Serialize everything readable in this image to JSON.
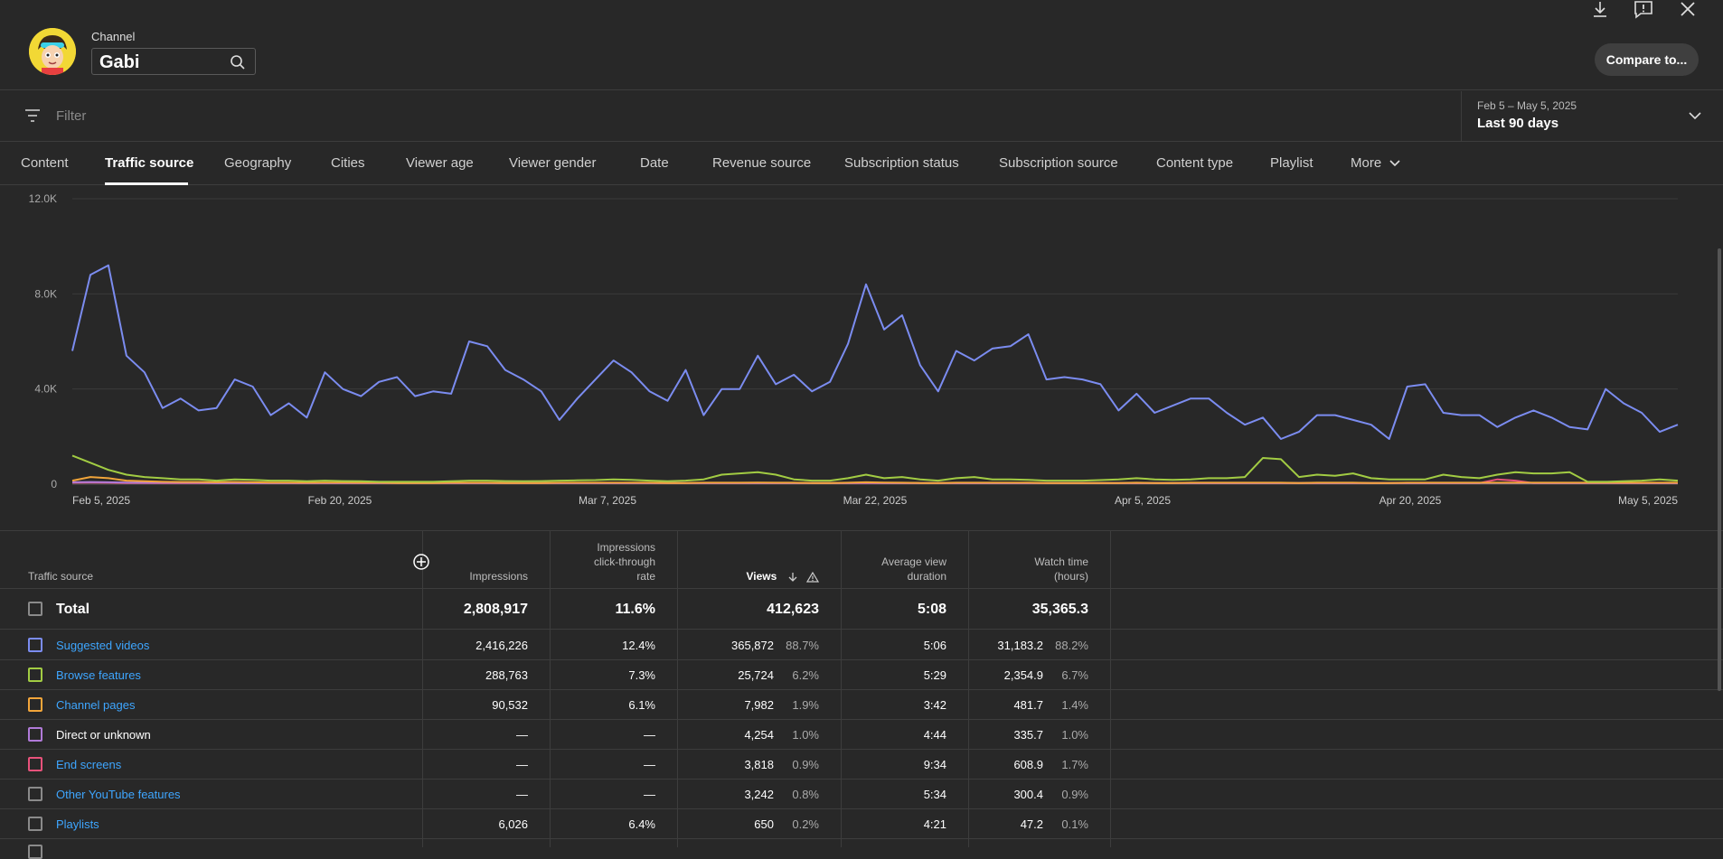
{
  "header": {
    "channel_label": "Channel",
    "channel_name": "Gabi",
    "compare_label": "Compare to..."
  },
  "filter": {
    "placeholder": "Filter",
    "date_range": "Feb 5 – May 5, 2025",
    "date_label": "Last 90 days"
  },
  "tabs": [
    {
      "label": "Content"
    },
    {
      "label": "Traffic source"
    },
    {
      "label": "Geography"
    },
    {
      "label": "Cities"
    },
    {
      "label": "Viewer age"
    },
    {
      "label": "Viewer gender"
    },
    {
      "label": "Date"
    },
    {
      "label": "Revenue source"
    },
    {
      "label": "Subscription status"
    },
    {
      "label": "Subscription source"
    },
    {
      "label": "Content type"
    },
    {
      "label": "Playlist"
    },
    {
      "label": "More"
    }
  ],
  "chart_data": {
    "type": "line",
    "y_ticks": [
      "12.0K",
      "8.0K",
      "4.0K",
      "0"
    ],
    "x_ticks": [
      "Feb 5, 2025",
      "Feb 20, 2025",
      "Mar 7, 2025",
      "Mar 22, 2025",
      "Apr 5, 2025",
      "Apr 20, 2025",
      "May 5, 2025"
    ],
    "ylim": [
      0,
      12000
    ],
    "grid": true,
    "series": [
      {
        "color": "#7b8cf0",
        "values": [
          5600,
          8800,
          9200,
          5400,
          4700,
          3200,
          3600,
          3100,
          3200,
          4400,
          4100,
          2900,
          3400,
          2800,
          4700,
          4000,
          3700,
          4300,
          4500,
          3700,
          3900,
          3800,
          6000,
          5800,
          4800,
          4400,
          3900,
          2700,
          3600,
          4400,
          5200,
          4700,
          3900,
          3500,
          4800,
          2900,
          4000,
          4000,
          5400,
          4200,
          4600,
          3900,
          4300,
          5900,
          8400,
          6500,
          7100,
          5000,
          3900,
          5600,
          5200,
          5700,
          5800,
          6300,
          4400,
          4500,
          4400,
          4200,
          3100,
          3800,
          3000,
          3300,
          3600,
          3600,
          3000,
          2500,
          2800,
          1900,
          2200,
          2900,
          2900,
          2700,
          2500,
          1900,
          4100,
          4200,
          3000,
          2900,
          2900,
          2400,
          2800,
          3100,
          2800,
          2400,
          2300,
          4000,
          3400,
          3000,
          2200,
          2500
        ]
      },
      {
        "color": "#a2cc43",
        "values": [
          1200,
          900,
          600,
          400,
          300,
          250,
          200,
          200,
          150,
          200,
          180,
          150,
          150,
          120,
          150,
          130,
          120,
          100,
          100,
          100,
          100,
          120,
          150,
          150,
          130,
          120,
          130,
          150,
          160,
          170,
          200,
          180,
          150,
          120,
          150,
          200,
          400,
          450,
          500,
          400,
          200,
          150,
          150,
          250,
          400,
          250,
          300,
          200,
          150,
          250,
          300,
          200,
          200,
          180,
          150,
          150,
          150,
          170,
          200,
          250,
          200,
          180,
          200,
          250,
          250,
          300,
          1100,
          1050,
          300,
          400,
          350,
          450,
          250,
          200,
          200,
          200,
          400,
          300,
          250,
          400,
          500,
          450,
          450,
          500,
          100,
          100,
          120,
          150,
          200,
          150
        ]
      },
      {
        "color": "#f2a53a",
        "values": [
          150,
          300,
          250,
          150,
          120,
          100,
          90,
          90,
          80,
          90,
          80,
          70,
          70,
          60,
          70,
          70,
          60,
          60,
          50,
          50,
          50,
          60,
          60,
          60,
          50,
          50,
          50,
          60,
          60,
          60,
          60,
          60,
          60,
          50,
          50,
          60,
          60,
          60,
          70,
          60,
          60,
          50,
          50,
          60,
          80,
          70,
          60,
          50,
          50,
          60,
          60,
          60,
          60,
          60,
          50,
          50,
          50,
          50,
          50,
          60,
          50,
          50,
          60,
          60,
          60,
          60,
          60,
          60,
          50,
          60,
          60,
          60,
          50,
          50,
          60,
          60,
          60,
          60,
          60,
          60,
          60,
          60,
          60,
          60,
          60,
          60,
          60,
          60,
          60,
          60
        ]
      },
      {
        "color": "#b07ad8",
        "values": [
          80,
          90,
          80,
          70,
          60,
          60,
          60,
          60,
          50,
          50,
          50,
          50,
          50,
          50,
          50,
          50,
          50,
          50,
          50,
          50,
          50,
          50,
          50,
          50,
          50,
          50,
          50,
          50,
          50,
          50,
          50,
          50,
          50,
          50,
          50,
          50,
          50,
          50,
          50,
          50,
          50,
          50,
          50,
          50,
          60,
          50,
          50,
          50,
          50,
          50,
          50,
          50,
          50,
          50,
          50,
          50,
          50,
          50,
          50,
          50,
          50,
          50,
          50,
          50,
          50,
          50,
          50,
          50,
          50,
          50,
          50,
          50,
          50,
          50,
          50,
          50,
          50,
          50,
          50,
          50,
          50,
          50,
          50,
          50,
          50,
          50,
          50,
          50,
          50,
          50
        ]
      },
      {
        "color": "#e8527b",
        "values": [
          60,
          70,
          60,
          50,
          50,
          40,
          40,
          40,
          40,
          40,
          40,
          40,
          40,
          40,
          40,
          40,
          40,
          40,
          40,
          40,
          40,
          40,
          40,
          40,
          40,
          40,
          40,
          40,
          40,
          40,
          40,
          40,
          40,
          40,
          40,
          40,
          40,
          40,
          40,
          40,
          40,
          40,
          40,
          40,
          40,
          40,
          40,
          40,
          40,
          40,
          40,
          40,
          40,
          40,
          40,
          40,
          40,
          40,
          40,
          40,
          40,
          40,
          40,
          40,
          40,
          40,
          40,
          40,
          40,
          40,
          40,
          40,
          40,
          40,
          40,
          40,
          40,
          40,
          40,
          200,
          150,
          40,
          40,
          40,
          40,
          40,
          40,
          40,
          40,
          40
        ]
      }
    ]
  },
  "table": {
    "headers": {
      "source": "Traffic source",
      "impressions": "Impressions",
      "ctr_1": "Impressions",
      "ctr_2": "click-through",
      "ctr_3": "rate",
      "views": "Views",
      "avd_1": "Average view",
      "avd_2": "duration",
      "watch_1": "Watch time",
      "watch_2": "(hours)"
    },
    "total": {
      "label": "Total",
      "impressions": "2,808,917",
      "ctr": "11.6%",
      "views": "412,623",
      "avd": "5:08",
      "watch": "35,365.3"
    },
    "rows": [
      {
        "label": "Suggested videos",
        "color": "#7b8cf0",
        "link": true,
        "impressions": "2,416,226",
        "ctr": "12.4%",
        "views": "365,872",
        "views_pct": "88.7%",
        "avd": "5:06",
        "watch": "31,183.2",
        "watch_pct": "88.2%"
      },
      {
        "label": "Browse features",
        "color": "#a2cc43",
        "link": true,
        "impressions": "288,763",
        "ctr": "7.3%",
        "views": "25,724",
        "views_pct": "6.2%",
        "avd": "5:29",
        "watch": "2,354.9",
        "watch_pct": "6.7%"
      },
      {
        "label": "Channel pages",
        "color": "#f2a53a",
        "link": true,
        "impressions": "90,532",
        "ctr": "6.1%",
        "views": "7,982",
        "views_pct": "1.9%",
        "avd": "3:42",
        "watch": "481.7",
        "watch_pct": "1.4%"
      },
      {
        "label": "Direct or unknown",
        "color": "#b07ad8",
        "link": false,
        "impressions": "—",
        "ctr": "—",
        "views": "4,254",
        "views_pct": "1.0%",
        "avd": "4:44",
        "watch": "335.7",
        "watch_pct": "1.0%"
      },
      {
        "label": "End screens",
        "color": "#e8527b",
        "link": true,
        "impressions": "—",
        "ctr": "—",
        "views": "3,818",
        "views_pct": "0.9%",
        "avd": "9:34",
        "watch": "608.9",
        "watch_pct": "1.7%"
      },
      {
        "label": "Other YouTube features",
        "color": "#8a8a8a",
        "link": true,
        "impressions": "—",
        "ctr": "—",
        "views": "3,242",
        "views_pct": "0.8%",
        "avd": "5:34",
        "watch": "300.4",
        "watch_pct": "0.9%"
      },
      {
        "label": "Playlists",
        "color": "#8a8a8a",
        "link": true,
        "impressions": "6,026",
        "ctr": "6.4%",
        "views": "650",
        "views_pct": "0.2%",
        "avd": "4:21",
        "watch": "47.2",
        "watch_pct": "0.1%"
      }
    ]
  }
}
